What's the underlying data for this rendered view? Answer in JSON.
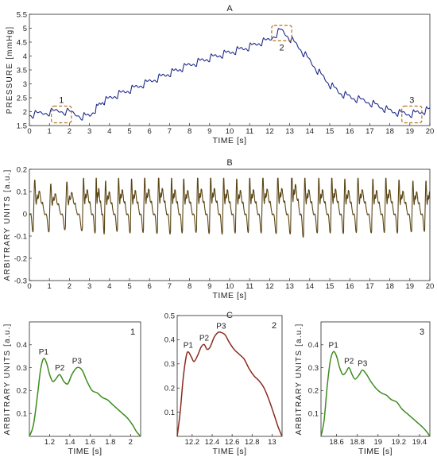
{
  "figure": {
    "panel_titles": [
      "A",
      "B",
      "C"
    ]
  },
  "chart_data": [
    {
      "id": "A",
      "type": "line",
      "title": "A",
      "xlabel": "TIME [s]",
      "ylabel": "PRESSURE [mmHg]",
      "xlim": [
        0,
        20
      ],
      "ylim": [
        1.5,
        5.5
      ],
      "xticks": [
        0,
        1,
        2,
        3,
        4,
        5,
        6,
        7,
        8,
        9,
        10,
        11,
        12,
        13,
        14,
        15,
        16,
        17,
        18,
        19,
        20
      ],
      "yticks": [
        1.5,
        2,
        2.5,
        3,
        3.5,
        4,
        4.5,
        5,
        5.5
      ],
      "xtick_labels": [
        "0",
        "1",
        "2",
        "3",
        "4",
        "5",
        "6",
        "7",
        "8",
        "9",
        "10",
        "11",
        "12",
        "13",
        "14",
        "15",
        "16",
        "17",
        "18",
        "19",
        "20"
      ],
      "ytick_labels": [
        "1.5",
        "2",
        "2.5",
        "3",
        "3.5",
        "4",
        "4.5",
        "5",
        "5.5"
      ],
      "grid": false,
      "color": "#1f2a8c",
      "envelope": {
        "x": [
          0,
          0.5,
          1.0,
          1.5,
          2.0,
          2.6,
          3.0,
          3.6,
          4.3,
          5.0,
          6.0,
          7.0,
          8.0,
          9.0,
          10.0,
          11.0,
          11.5,
          12.0,
          12.3,
          12.55,
          12.8,
          13.1,
          13.5,
          14.0,
          14.5,
          15.0,
          15.5,
          16.0,
          16.5,
          17.0,
          17.5,
          18.0,
          18.5,
          19.0,
          19.5,
          20.0
        ],
        "y": [
          1.85,
          1.9,
          1.95,
          2.0,
          1.95,
          1.8,
          1.82,
          2.3,
          2.55,
          2.75,
          3.05,
          3.35,
          3.65,
          3.9,
          4.1,
          4.3,
          4.45,
          4.55,
          4.75,
          4.9,
          4.75,
          4.55,
          4.25,
          3.8,
          3.35,
          2.95,
          2.65,
          2.5,
          2.4,
          2.3,
          2.15,
          2.0,
          1.92,
          1.88,
          1.95,
          2.05
        ]
      },
      "beat_times": [
        0.2,
        1.0,
        1.8,
        2.65,
        3.3,
        3.75,
        4.4,
        5.05,
        5.7,
        6.4,
        7.05,
        7.65,
        8.35,
        9.0,
        9.65,
        10.3,
        10.95,
        11.6,
        12.35,
        13.05,
        13.7,
        14.4,
        15.05,
        15.7,
        16.35,
        17.1,
        17.75,
        18.4,
        19.1,
        19.75
      ],
      "boxes": [
        {
          "label": "1",
          "x": [
            1.1,
            2.1
          ],
          "y": [
            1.6,
            2.2
          ]
        },
        {
          "label": "2",
          "x": [
            12.1,
            13.1
          ],
          "y": [
            4.55,
            5.1
          ]
        },
        {
          "label": "3",
          "x": [
            18.6,
            19.6
          ],
          "y": [
            1.6,
            2.2
          ]
        }
      ]
    },
    {
      "id": "B",
      "type": "line",
      "title": "B",
      "xlabel": "TIME [s]",
      "ylabel": "ARBITRARY UNITS [a.u.]",
      "xlim": [
        0,
        20
      ],
      "ylim": [
        -0.3,
        0.2
      ],
      "xticks": [
        0,
        1,
        2,
        3,
        4,
        5,
        6,
        7,
        8,
        9,
        10,
        11,
        12,
        13,
        14,
        15,
        16,
        17,
        18,
        19,
        20
      ],
      "yticks": [
        -0.3,
        -0.2,
        -0.1,
        0,
        0.1,
        0.2
      ],
      "xtick_labels": [
        "0",
        "1",
        "2",
        "3",
        "4",
        "5",
        "6",
        "7",
        "8",
        "9",
        "10",
        "11",
        "12",
        "13",
        "14",
        "15",
        "16",
        "17",
        "18",
        "19",
        "20"
      ],
      "ytick_labels": [
        "-0.3",
        "-0.2",
        "-0.1",
        "0",
        "0.1",
        "0.2"
      ],
      "grid": false,
      "color": "#5a4514",
      "beat_times": [
        0.2,
        1.0,
        1.8,
        2.65,
        3.3,
        3.75,
        4.4,
        5.05,
        5.7,
        6.4,
        7.05,
        7.65,
        8.35,
        9.0,
        9.65,
        10.3,
        10.95,
        11.6,
        12.35,
        13.05,
        13.7,
        14.4,
        15.05,
        15.7,
        16.35,
        17.1,
        17.75,
        18.4,
        19.1,
        19.75
      ],
      "beat_amplitudes": [
        0.34,
        0.3,
        0.32,
        0.36,
        0.38,
        0.33,
        0.36,
        0.35,
        0.37,
        0.38,
        0.36,
        0.35,
        0.37,
        0.38,
        0.36,
        0.35,
        0.36,
        0.37,
        0.38,
        0.44,
        0.36,
        0.36,
        0.37,
        0.35,
        0.36,
        0.35,
        0.36,
        0.34,
        0.33,
        0.33
      ]
    },
    {
      "id": "C1",
      "type": "line",
      "region_label": "1",
      "xlabel": "TIME [s]",
      "ylabel": "ARBITRARY UNITS [a.u.]",
      "xlim": [
        1.0,
        2.1
      ],
      "ylim": [
        0,
        0.5
      ],
      "xticks": [
        1.2,
        1.4,
        1.6,
        1.8,
        2.0
      ],
      "xtick_labels": [
        "1.2",
        "1.4",
        "1.6",
        "1.8",
        "2"
      ],
      "yticks": [
        0.1,
        0.2,
        0.3,
        0.4
      ],
      "ytick_labels": [
        "0.1",
        "0.2",
        "0.3",
        "0.4"
      ],
      "color": "#3d8b1e",
      "peaks": [
        {
          "label": "P1",
          "x": 1.14,
          "y": 0.34
        },
        {
          "label": "P2",
          "x": 1.3,
          "y": 0.27
        },
        {
          "label": "P3",
          "x": 1.47,
          "y": 0.3
        }
      ],
      "x": [
        1.0,
        1.04,
        1.08,
        1.11,
        1.14,
        1.17,
        1.2,
        1.23,
        1.26,
        1.3,
        1.34,
        1.38,
        1.42,
        1.47,
        1.52,
        1.57,
        1.62,
        1.67,
        1.72,
        1.77,
        1.82,
        1.87,
        1.92,
        1.97,
        2.02,
        2.06,
        2.1
      ],
      "y": [
        0.0,
        0.05,
        0.18,
        0.29,
        0.34,
        0.32,
        0.27,
        0.24,
        0.25,
        0.27,
        0.24,
        0.23,
        0.27,
        0.3,
        0.29,
        0.24,
        0.2,
        0.19,
        0.17,
        0.16,
        0.14,
        0.12,
        0.1,
        0.08,
        0.05,
        0.02,
        0.0
      ]
    },
    {
      "id": "C2",
      "type": "line",
      "region_label": "2",
      "xlabel": "TIME [s]",
      "ylabel": "",
      "xlim": [
        12.05,
        13.1
      ],
      "ylim": [
        0,
        0.5
      ],
      "xticks": [
        12.2,
        12.4,
        12.6,
        12.8,
        13.0
      ],
      "xtick_labels": [
        "12.2",
        "12.4",
        "12.6",
        "12.8",
        "13"
      ],
      "yticks": [
        0.1,
        0.2,
        0.3,
        0.4,
        0.5
      ],
      "ytick_labels": [
        "0.1",
        "0.2",
        "0.3",
        "0.4",
        "0.5"
      ],
      "color": "#8b2a1e",
      "peaks": [
        {
          "label": "P1",
          "x": 12.16,
          "y": 0.35
        },
        {
          "label": "P2",
          "x": 12.32,
          "y": 0.38
        },
        {
          "label": "P3",
          "x": 12.49,
          "y": 0.43
        }
      ],
      "x": [
        12.05,
        12.08,
        12.11,
        12.14,
        12.16,
        12.19,
        12.22,
        12.26,
        12.29,
        12.32,
        12.35,
        12.38,
        12.42,
        12.46,
        12.49,
        12.53,
        12.57,
        12.62,
        12.67,
        12.72,
        12.77,
        12.82,
        12.87,
        12.92,
        12.97,
        13.02,
        13.06,
        13.1
      ],
      "y": [
        0.0,
        0.1,
        0.24,
        0.33,
        0.35,
        0.33,
        0.31,
        0.34,
        0.37,
        0.38,
        0.36,
        0.37,
        0.41,
        0.43,
        0.43,
        0.42,
        0.39,
        0.36,
        0.34,
        0.32,
        0.28,
        0.25,
        0.23,
        0.2,
        0.15,
        0.09,
        0.04,
        0.0
      ]
    },
    {
      "id": "C3",
      "type": "line",
      "region_label": "3",
      "xlabel": "TIME [s]",
      "ylabel": "ARBITRARY UNITS [a.u.]",
      "xlim": [
        18.45,
        19.5
      ],
      "ylim": [
        0,
        0.5
      ],
      "xticks": [
        18.6,
        18.8,
        19.0,
        19.2,
        19.4
      ],
      "xtick_labels": [
        "18.6",
        "18.8",
        "19",
        "19.2",
        "19.4"
      ],
      "yticks": [
        0.1,
        0.2,
        0.3,
        0.4
      ],
      "ytick_labels": [
        "0.1",
        "0.2",
        "0.3",
        "0.4"
      ],
      "color": "#3d8b1e",
      "peaks": [
        {
          "label": "P1",
          "x": 18.57,
          "y": 0.37
        },
        {
          "label": "P2",
          "x": 18.72,
          "y": 0.3
        },
        {
          "label": "P3",
          "x": 18.85,
          "y": 0.29
        }
      ],
      "x": [
        18.45,
        18.48,
        18.51,
        18.54,
        18.57,
        18.6,
        18.63,
        18.66,
        18.69,
        18.72,
        18.75,
        18.78,
        18.82,
        18.85,
        18.89,
        18.93,
        18.98,
        19.03,
        19.08,
        19.13,
        19.18,
        19.23,
        19.28,
        19.33,
        19.38,
        19.43,
        19.47,
        19.5
      ],
      "y": [
        0.0,
        0.07,
        0.22,
        0.33,
        0.37,
        0.35,
        0.3,
        0.27,
        0.28,
        0.3,
        0.27,
        0.25,
        0.27,
        0.29,
        0.27,
        0.24,
        0.21,
        0.19,
        0.18,
        0.16,
        0.15,
        0.12,
        0.1,
        0.08,
        0.06,
        0.04,
        0.02,
        0.0
      ]
    }
  ]
}
